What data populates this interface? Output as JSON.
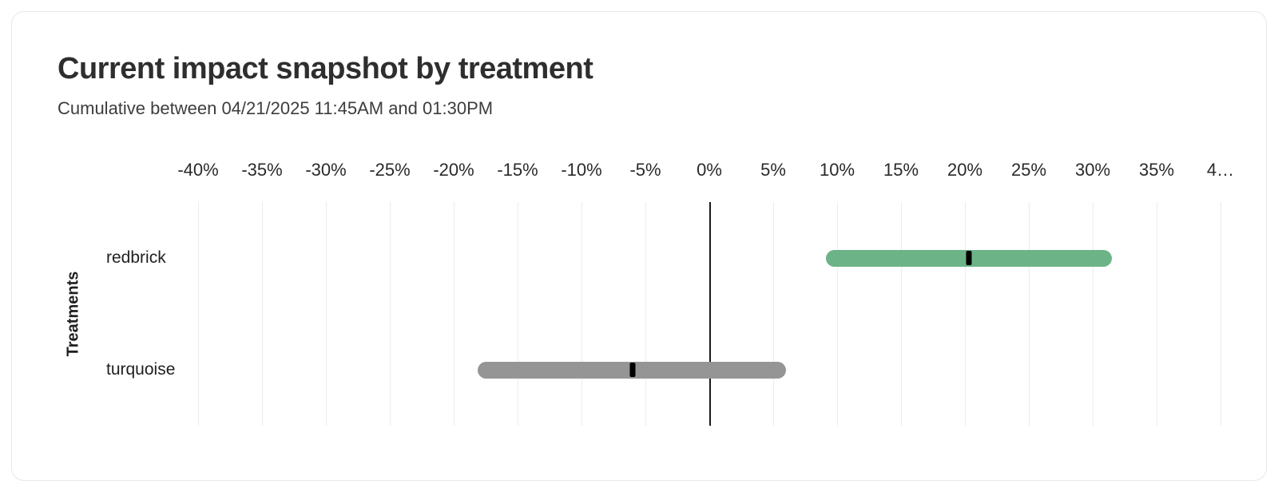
{
  "header": {
    "title": "Current impact snapshot by treatment",
    "subtitle": "Cumulative between 04/21/2025 11:45AM and 01:30PM"
  },
  "chart_data": {
    "type": "bar",
    "subtype": "horizontal-range-interval",
    "title": "Current impact snapshot by treatment",
    "subtitle": "Cumulative between 04/21/2025 11:45AM and 01:30PM",
    "xlabel": "",
    "ylabel": "Treatments",
    "x_unit": "percent",
    "xlim": [
      -42.5,
      42.5
    ],
    "grid": "vertical",
    "zero_line": true,
    "x_ticks": [
      {
        "value": -40,
        "label": "-40%"
      },
      {
        "value": -35,
        "label": "-35%"
      },
      {
        "value": -30,
        "label": "-30%"
      },
      {
        "value": -25,
        "label": "-25%"
      },
      {
        "value": -20,
        "label": "-20%"
      },
      {
        "value": -15,
        "label": "-15%"
      },
      {
        "value": -10,
        "label": "-10%"
      },
      {
        "value": -5,
        "label": "-5%"
      },
      {
        "value": 0,
        "label": "0%"
      },
      {
        "value": 5,
        "label": "5%"
      },
      {
        "value": 10,
        "label": "10%"
      },
      {
        "value": 15,
        "label": "15%"
      },
      {
        "value": 20,
        "label": "20%"
      },
      {
        "value": 25,
        "label": "25%"
      },
      {
        "value": 30,
        "label": "30%"
      },
      {
        "value": 35,
        "label": "35%"
      },
      {
        "value": 40,
        "label": "4…"
      }
    ],
    "series": [
      {
        "name": "redbrick",
        "low": 9.1,
        "mid": 20.3,
        "high": 31.5,
        "color": "#6cb487"
      },
      {
        "name": "turquoise",
        "low": -18.1,
        "mid": -6.0,
        "high": 6.0,
        "color": "#959595"
      }
    ],
    "marker_color": "#000000"
  },
  "colors": {
    "card_border": "#e7e7e7",
    "grid_line": "#ececec",
    "zero_line": "#1a1a1a",
    "title_text": "#2e2e2e",
    "subtitle_text": "#3d3d3d",
    "tick_text": "#2a2a2a",
    "label_text": "#1f1f1f"
  }
}
